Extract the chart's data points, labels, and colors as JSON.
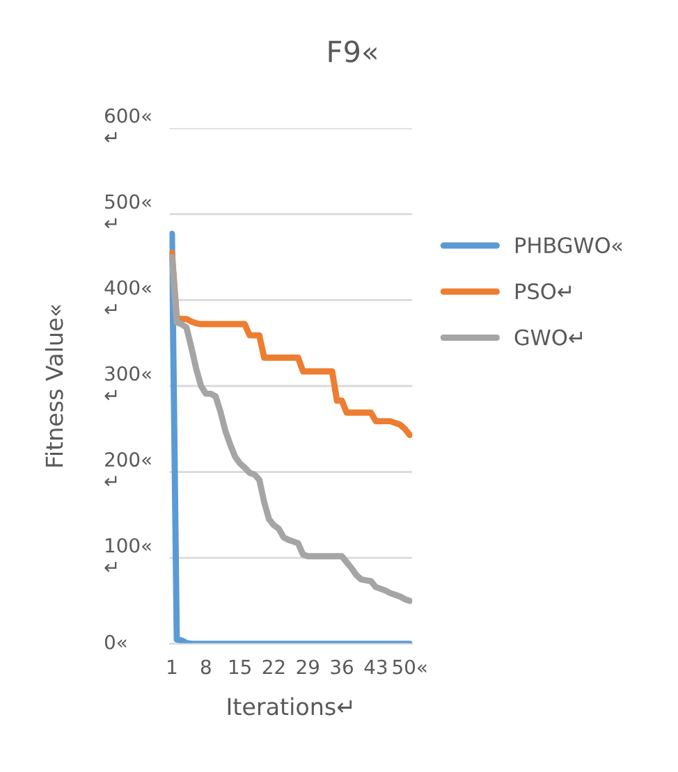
{
  "chart_data": {
    "type": "line",
    "title": "F9«",
    "xlabel": "Iterations↵",
    "ylabel": "Fitness Value«",
    "categories": [
      "1",
      null,
      null,
      null,
      null,
      null,
      null,
      "8",
      null,
      null,
      null,
      null,
      null,
      null,
      "15",
      null,
      null,
      null,
      null,
      null,
      null,
      "22",
      null,
      null,
      null,
      null,
      null,
      null,
      "29",
      null,
      null,
      null,
      null,
      null,
      null,
      "36",
      null,
      null,
      null,
      null,
      null,
      null,
      "43",
      null,
      null,
      null,
      null,
      null,
      null,
      "50«"
    ],
    "series": [
      {
        "name": "PHBGWO«",
        "color": "#5b9bd5",
        "values": [
          477,
          5,
          4,
          1,
          0,
          0,
          0,
          0,
          0,
          0,
          0,
          0,
          0,
          0,
          0,
          0,
          0,
          0,
          0,
          0,
          0,
          0,
          0,
          0,
          0,
          0,
          0,
          0,
          0,
          0,
          0,
          0,
          0,
          0,
          0,
          0,
          0,
          0,
          0,
          0,
          0,
          0,
          0,
          0,
          0,
          0,
          0,
          0,
          0,
          0
        ]
      },
      {
        "name": "PSO↵",
        "color": "#ed7d31",
        "values": [
          455,
          379,
          378,
          378,
          375,
          373,
          372,
          372,
          372,
          372,
          372,
          372,
          372,
          372,
          372,
          372,
          359,
          359,
          359,
          333,
          333,
          333,
          333,
          333,
          333,
          333,
          333,
          317,
          317,
          317,
          317,
          317,
          317,
          317,
          283,
          283,
          269,
          269,
          269,
          269,
          269,
          269,
          259,
          259,
          259,
          259,
          257,
          255,
          250,
          243
        ]
      },
      {
        "name": "GWO↵",
        "color": "#a5a5a5",
        "values": [
          450,
          374,
          372,
          368,
          345,
          320,
          300,
          291,
          291,
          288,
          270,
          248,
          232,
          218,
          210,
          205,
          199,
          197,
          191,
          165,
          145,
          138,
          134,
          124,
          121,
          119,
          117,
          104,
          102,
          102,
          102,
          102,
          102,
          102,
          102,
          102,
          95,
          88,
          80,
          75,
          74,
          73,
          66,
          64,
          62,
          59,
          57,
          55,
          52,
          50
        ]
      }
    ],
    "ylim": [
      0,
      600
    ],
    "yticks": [
      {
        "value": 0,
        "label": "0«"
      },
      {
        "value": 100,
        "label": "100«\n↵"
      },
      {
        "value": 200,
        "label": "200«\n↵"
      },
      {
        "value": 300,
        "label": "300«\n↵"
      },
      {
        "value": 400,
        "label": "400«\n↵"
      },
      {
        "value": 500,
        "label": "500«\n↵"
      },
      {
        "value": 600,
        "label": "600«\n↵"
      }
    ],
    "grid": "y",
    "legend": "right",
    "marker": "none",
    "line_style": "solid"
  }
}
